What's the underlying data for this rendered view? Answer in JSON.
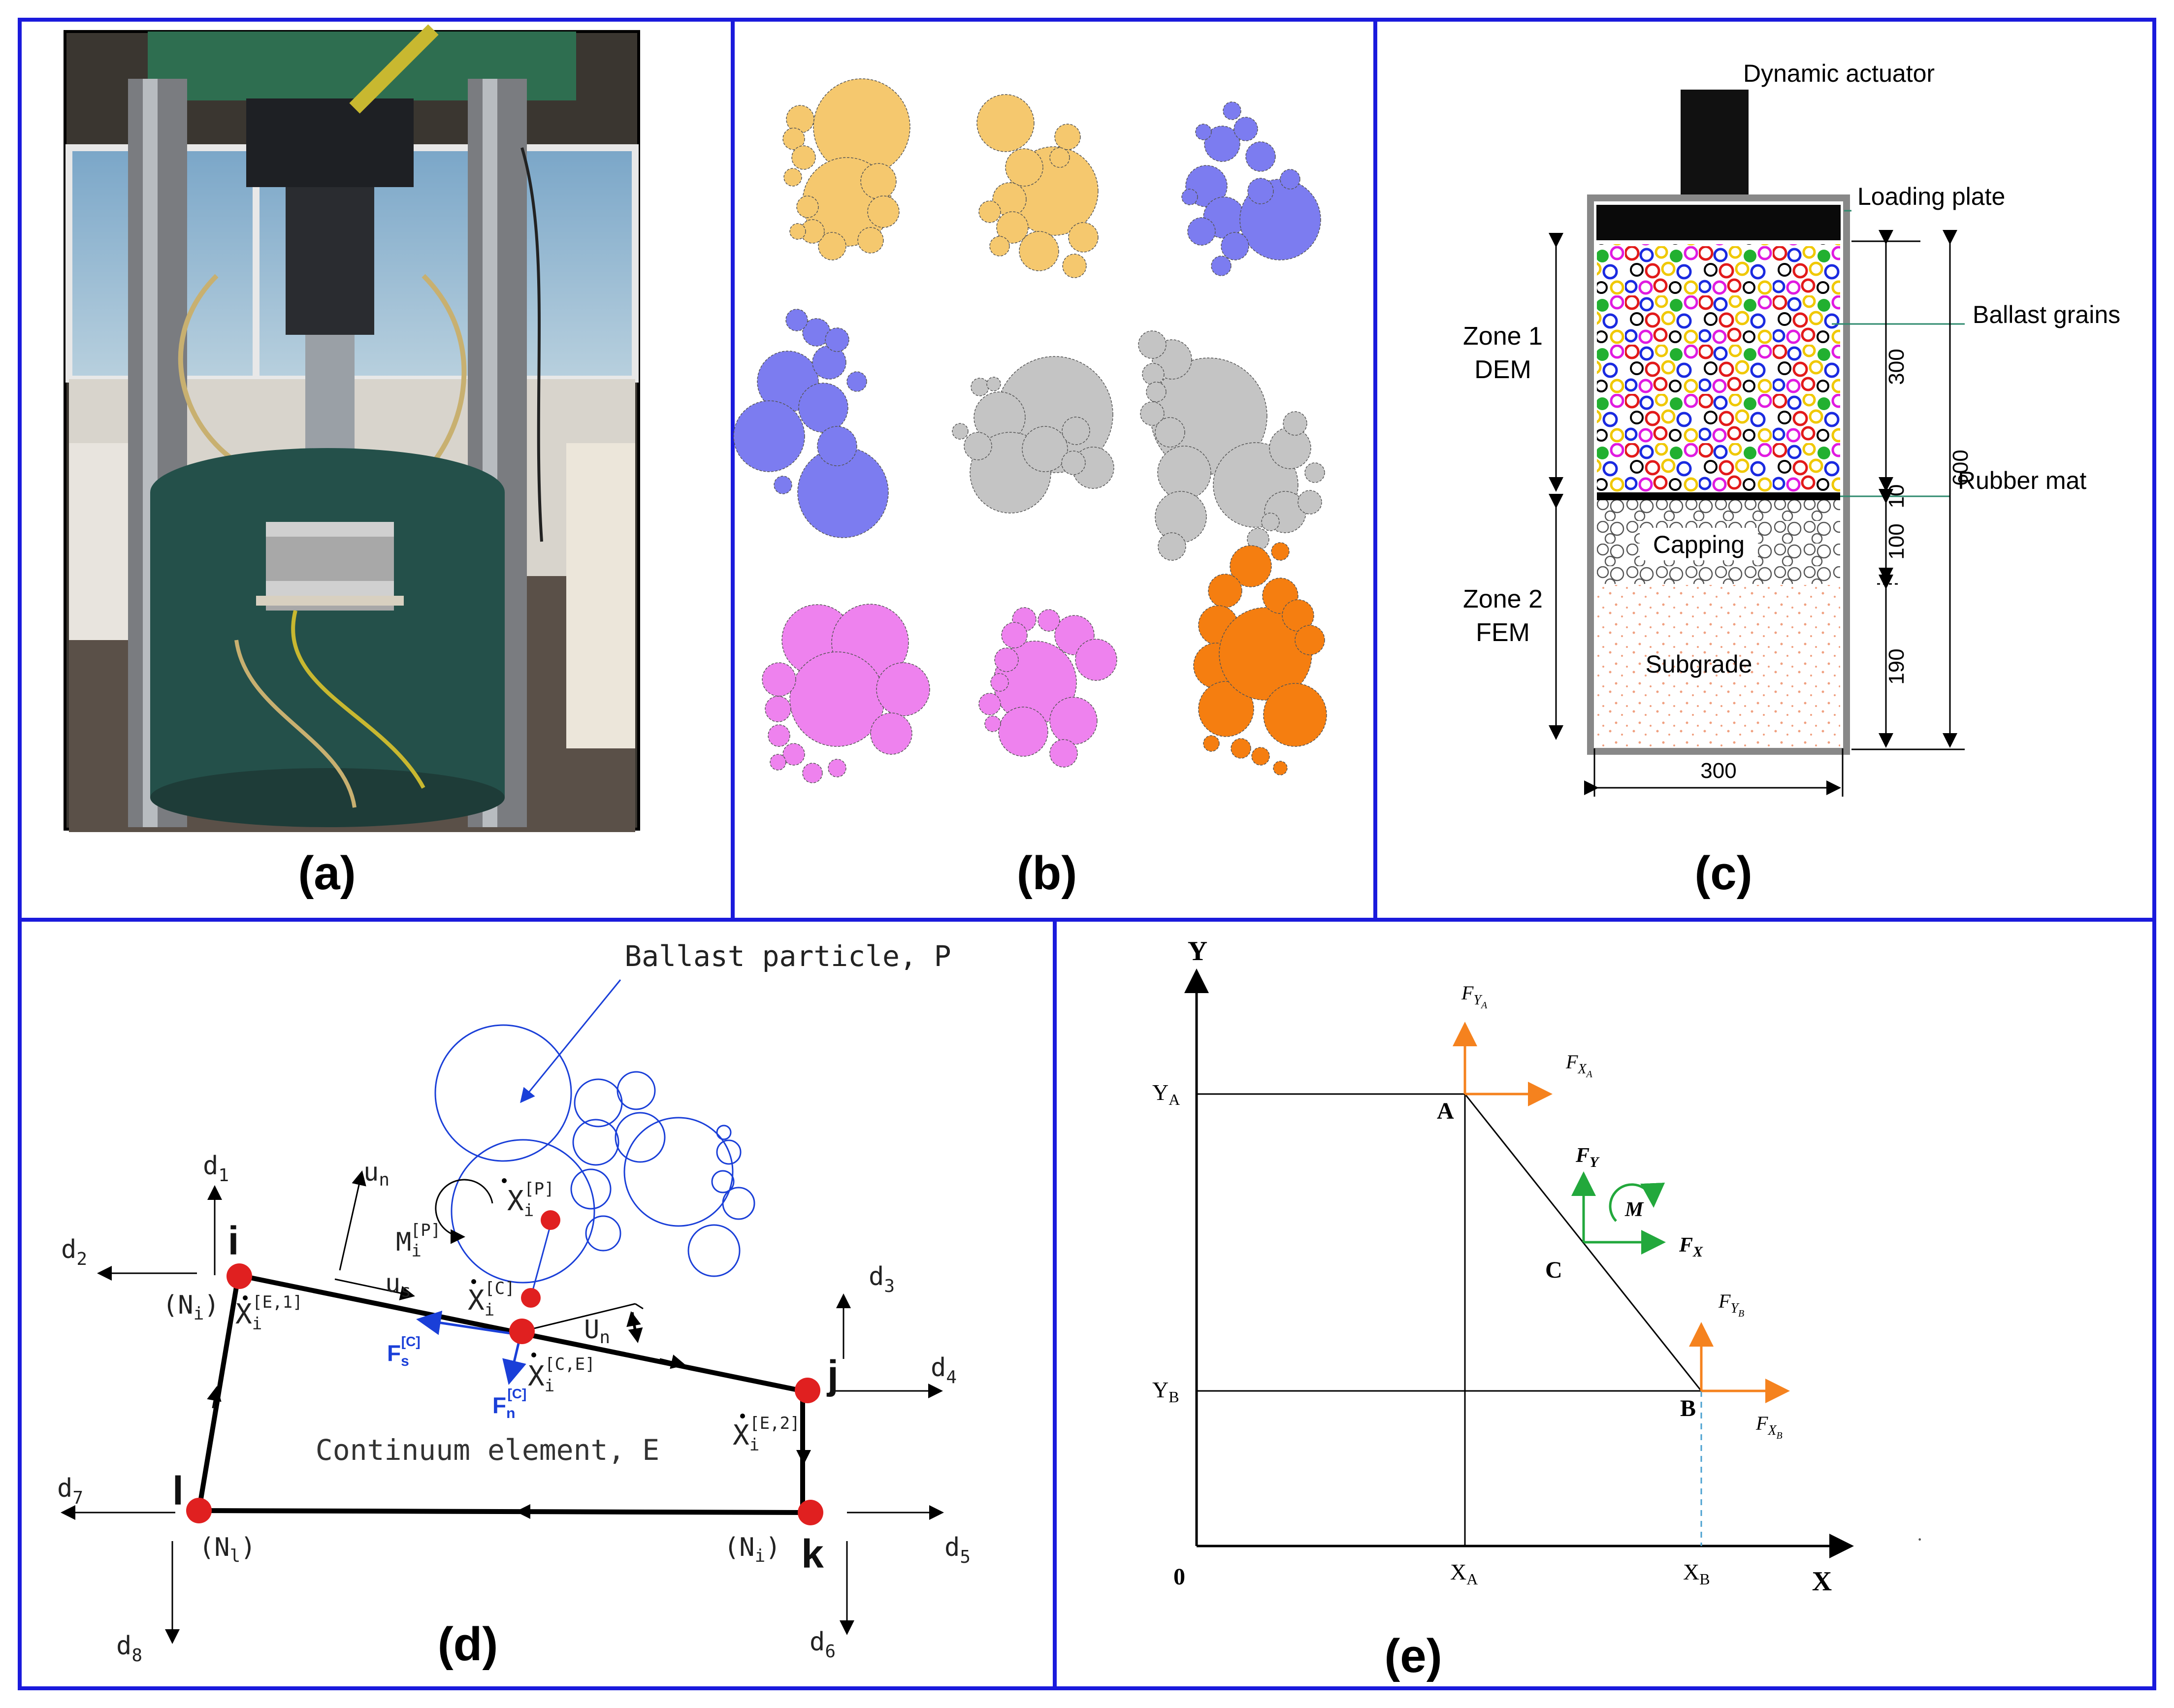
{
  "colors": {
    "frame": "#1a1adc",
    "yellow": "#f5c86e",
    "blue": "#7c7cf0",
    "gray": "#c4c4c4",
    "pink": "#ee82ee",
    "orange": "#f57e10",
    "node_red": "#e02020",
    "force_blue": "#1a3fd8",
    "force_orange": "#f5821e",
    "force_green": "#22a83c"
  },
  "panel_a": {
    "label": "(a)"
  },
  "panel_b": {
    "label": "(b)"
  },
  "panel_c": {
    "label": "(c)",
    "dynamic_actuator": "Dynamic actuator",
    "loading_plate": "Loading plate",
    "ballast_grains": "Ballast grains",
    "rubber_mat": "Rubber mat",
    "zone1_line1": "Zone 1",
    "zone1_line2": "DEM",
    "zone2_line1": "Zone 2",
    "zone2_line2": "FEM",
    "capping": "Capping",
    "subgrade": "Subgrade",
    "dim_300": "300",
    "dim_10": "10",
    "dim_100": "100",
    "dim_190": "190",
    "dim_600": "600",
    "dim_width": "300"
  },
  "panel_d": {
    "label": "(d)",
    "ballast_particle": "Ballast particle, P",
    "continuum_element": "Continuum element, E",
    "d1": "d",
    "d1_sub": "1",
    "d2": "d",
    "d2_sub": "2",
    "d3": "d",
    "d3_sub": "3",
    "d4": "d",
    "d4_sub": "4",
    "d5": "d",
    "d5_sub": "5",
    "d6": "d",
    "d6_sub": "6",
    "d7": "d",
    "d7_sub": "7",
    "d8": "d",
    "d8_sub": "8",
    "node_i": "i",
    "node_j": "j",
    "node_k": "k",
    "node_l": "l",
    "Ni": "(N",
    "Ni_sub": "i",
    "Nl_sub": "l",
    "un": "u",
    "un_sub": "n",
    "us": "u",
    "us_sub": "s",
    "Un": "U",
    "Un_sub": "n",
    "Mi": "M",
    "Mi_sub": "i",
    "Mi_sup": "[P]",
    "X": "X",
    "X_sub": "i",
    "XP_sup": "[P]",
    "XC_sup": "[C]",
    "XCE_sup": "[C,E]",
    "XE1_sup": "[E,1]",
    "XE2_sup": "[E,2]",
    "Fs": "F",
    "Fs_sub": "s",
    "Fn": "F",
    "Fn_sub": "n",
    "F_sup": "[C]"
  },
  "panel_e": {
    "label": "(e)",
    "axis_x": "X",
    "axis_y": "Y",
    "origin": "0",
    "YA": "Y",
    "YA_sub": "A",
    "YB": "Y",
    "YB_sub": "B",
    "XA": "X",
    "XA_sub": "A",
    "XB": "X",
    "XB_sub": "B",
    "point_A": "A",
    "point_B": "B",
    "point_C": "C",
    "F": "F",
    "FY": "Y",
    "FX": "X",
    "M": "M",
    "sub_YA": "Y",
    "sub_YA2": "A",
    "sub_XA": "X",
    "sub_XA2": "A",
    "sub_YB": "Y",
    "sub_YB2": "B",
    "sub_XB": "X",
    "sub_XB2": "B"
  }
}
